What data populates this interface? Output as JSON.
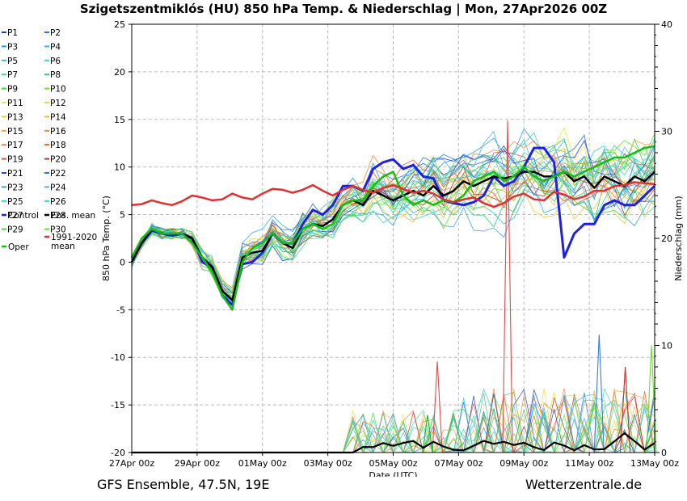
{
  "title": "Szigetszentmiklós  (HU)  850 hPa Temp. & Niederschlag | Mon, 27Apr2026 00Z",
  "footer": {
    "left": "GFS Ensemble, 47.5N, 19E",
    "right": "Wetterzentrale.de"
  },
  "chart_data": {
    "type": "line",
    "title": "Szigetszentmiklós  (HU)  850 hPa Temp. & Niederschlag | Mon, 27Apr2026 00Z",
    "xlabel": "Date (UTC)",
    "ylabel": "850 hPa Temp. (°C)",
    "y2label": "Niederschlag (mm)",
    "ylim": [
      -20,
      25
    ],
    "y2lim": [
      0,
      40
    ],
    "xlim": [
      0,
      16
    ],
    "grid": true,
    "legend_position": "left",
    "x_ticks": [
      {
        "x": 0,
        "label": "27Apr 00z"
      },
      {
        "x": 2,
        "label": "29Apr 00z"
      },
      {
        "x": 4,
        "label": "01May 00z"
      },
      {
        "x": 6,
        "label": "03May 00z"
      },
      {
        "x": 8,
        "label": "05May 00z"
      },
      {
        "x": 10,
        "label": "07May 00z"
      },
      {
        "x": 12,
        "label": "09May 00z"
      },
      {
        "x": 14,
        "label": "11May 00z"
      },
      {
        "x": 16,
        "label": "13May 00z"
      }
    ],
    "y_ticks": [
      25,
      20,
      15,
      10,
      5,
      0,
      -5,
      -10,
      -15,
      -20
    ],
    "y2_ticks": [
      40,
      30,
      20,
      10,
      0
    ],
    "legend": [
      {
        "label": "P1",
        "color": "#1f3fbf"
      },
      {
        "label": "P2",
        "color": "#2f6fe0"
      },
      {
        "label": "P3",
        "color": "#2a9bd6"
      },
      {
        "label": "P4",
        "color": "#3ab0e8"
      },
      {
        "label": "P5",
        "color": "#2ec9c9"
      },
      {
        "label": "P6",
        "color": "#36d8b0"
      },
      {
        "label": "P7",
        "color": "#3ed99a"
      },
      {
        "label": "P8",
        "color": "#2ecc71"
      },
      {
        "label": "P9",
        "color": "#3fd83f"
      },
      {
        "label": "P10",
        "color": "#6ae02a"
      },
      {
        "label": "P11",
        "color": "#e8e83a"
      },
      {
        "label": "P12",
        "color": "#f2d23a"
      },
      {
        "label": "P13",
        "color": "#f0c84a"
      },
      {
        "label": "P14",
        "color": "#f2b63a"
      },
      {
        "label": "P15",
        "color": "#f0a64a"
      },
      {
        "label": "P16",
        "color": "#d98c3a"
      },
      {
        "label": "P17",
        "color": "#e8894a"
      },
      {
        "label": "P18",
        "color": "#d9602a"
      },
      {
        "label": "P19",
        "color": "#d95a4a"
      },
      {
        "label": "P20",
        "color": "#b8342a"
      },
      {
        "label": "P21",
        "color": "#2a48c8"
      },
      {
        "label": "P22",
        "color": "#2a7ae0"
      },
      {
        "label": "P23",
        "color": "#3aa4e0"
      },
      {
        "label": "P24",
        "color": "#48b6e8"
      },
      {
        "label": "P25",
        "color": "#38d0d0"
      },
      {
        "label": "P26",
        "color": "#40d6b8"
      },
      {
        "label": "P27",
        "color": "#48dca0"
      },
      {
        "label": "P28",
        "color": "#3ed07a"
      },
      {
        "label": "P29",
        "color": "#4ad84a"
      },
      {
        "label": "P30",
        "color": "#5ee03a"
      },
      {
        "label": "Control",
        "color": "#2020e0"
      },
      {
        "label": "Ens. mean",
        "color": "#000000"
      },
      {
        "label": "1991-2020 mean",
        "color": "#e03030"
      },
      {
        "label": "Oper",
        "color": "#10c010"
      }
    ],
    "series": [
      {
        "name": "Control",
        "color": "#2020e0",
        "width": 3,
        "values": [
          0.5,
          2,
          3.3,
          3,
          2.8,
          3,
          2.5,
          0,
          -0.5,
          -3.5,
          -4.5,
          -0.2,
          0,
          1,
          3,
          2,
          2,
          4,
          5.5,
          5,
          6,
          8,
          8,
          7.5,
          9.8,
          10.5,
          10.8,
          9.8,
          10.2,
          9,
          8.8,
          6.5,
          6.2,
          6,
          6.3,
          7,
          9,
          8,
          8.5,
          10,
          12,
          12,
          10.5,
          0.5,
          3,
          4,
          4,
          6,
          6.5,
          6,
          6,
          7,
          8
        ]
      },
      {
        "name": "Ens. mean",
        "color": "#000000",
        "width": 2.5,
        "values": [
          0,
          2,
          3.5,
          3,
          3,
          3,
          2.5,
          0.5,
          -0.5,
          -3,
          -4,
          0.5,
          1,
          1.2,
          3,
          2,
          1.5,
          3.5,
          4,
          3.8,
          4.5,
          6,
          6.5,
          6,
          7.5,
          7,
          6.5,
          7,
          7.5,
          7,
          8,
          7,
          7.5,
          8.5,
          8,
          8.5,
          9,
          8.8,
          9,
          9.5,
          9.5,
          9,
          9,
          9.5,
          8.5,
          9,
          7.8,
          9,
          8.5,
          8,
          9,
          8.5,
          9.5
        ]
      },
      {
        "name": "Oper",
        "color": "#10c010",
        "width": 2.5,
        "values": [
          0.5,
          2.5,
          3.5,
          3,
          3,
          3,
          2,
          0.5,
          -1,
          -3.5,
          -5,
          0,
          1.5,
          2,
          3,
          2,
          2,
          3.5,
          4,
          3.5,
          4,
          6,
          6.5,
          6.5,
          8,
          9,
          9.5,
          7,
          6,
          6.5,
          6,
          6.5,
          6.3,
          7,
          8.5,
          9,
          9.5,
          8.5,
          9,
          10,
          9,
          8.5,
          9,
          9.5,
          9,
          9.5,
          10,
          10.5,
          11,
          11,
          11.5,
          12,
          12.2
        ]
      },
      {
        "name": "1991-2020 mean",
        "color": "#e03030",
        "width": 2.5,
        "values": [
          6,
          6.1,
          6.5,
          6.2,
          6,
          6.4,
          7,
          6.8,
          6.5,
          6.6,
          7.2,
          6.8,
          6.6,
          7.2,
          7.7,
          7.6,
          7.3,
          7.6,
          8.1,
          7.5,
          7,
          7.6,
          8,
          7.6,
          7.3,
          7.8,
          8.1,
          7.7,
          7.3,
          7.5,
          7.2,
          6.6,
          6.3,
          6.6,
          6.8,
          6.2,
          5.8,
          6.2,
          6.9,
          7.2,
          6.6,
          6.5,
          7.4,
          7.1,
          6.6,
          6.9,
          7.5,
          7.5,
          8,
          8.1,
          8.4,
          8.3,
          8.2
        ]
      }
    ],
    "precipitation": {
      "color": "#1a1a1a",
      "peaks": [
        {
          "x": 11.5,
          "value": 31,
          "color": "#e04a4a"
        },
        {
          "x": 9.35,
          "value": 8.5,
          "color": "#e04a4a"
        },
        {
          "x": 14.3,
          "value": 11,
          "color": "#3a7ae0"
        },
        {
          "x": 15.1,
          "value": 8,
          "color": "#b8342a"
        },
        {
          "x": 9.05,
          "value": 3.5,
          "color": "#10c010"
        },
        {
          "x": 15.9,
          "value": 10,
          "color": "#6ae02a"
        }
      ]
    }
  }
}
